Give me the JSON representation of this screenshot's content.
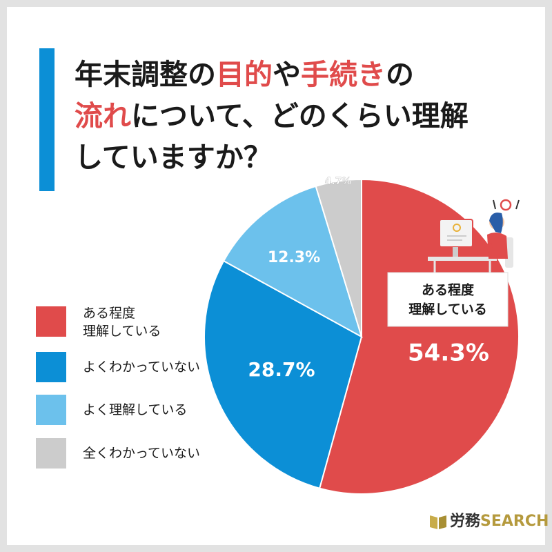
{
  "title": {
    "line1_plain": "年末調整の",
    "line1_hl1": "目的",
    "line1_mid": "や",
    "line1_hl2": "手続き",
    "line1_end": "の",
    "line2_hl": "流れ",
    "line2_rest": "について、どのくらい理解",
    "line3": "していますか？"
  },
  "colors": {
    "accent_bar": "#0c8fd6",
    "highlight_text": "#e04b4b",
    "frame": "#e2e2e2"
  },
  "chart_data": {
    "type": "pie",
    "start": "12 o'clock, clockwise",
    "slices": [
      {
        "label": "ある程度\n理解している",
        "value": 54.3,
        "display": "54.3%",
        "color": "#e04b4b"
      },
      {
        "label": "よくわかっていない",
        "value": 28.7,
        "display": "28.7%",
        "color": "#0c8fd6"
      },
      {
        "label": "よく理解している",
        "value": 12.3,
        "display": "12.3%",
        "color": "#6cc1ec"
      },
      {
        "label": "全くわかっていない",
        "value": 4.7,
        "display": "4.7%",
        "color": "#cccccc"
      }
    ],
    "callout": "ある程度\n理解している",
    "legend_position": "left"
  },
  "legend": [
    {
      "line1": "ある程度",
      "line2": "理解している",
      "color": "#e04b4b"
    },
    {
      "line1": "よくわかっていない",
      "line2": "",
      "color": "#0c8fd6"
    },
    {
      "line1": "よく理解している",
      "line2": "",
      "color": "#6cc1ec"
    },
    {
      "line1": "全くわかっていない",
      "line2": "",
      "color": "#cccccc"
    }
  ],
  "logo": {
    "text_main": "労務",
    "text_accent": "SEARCH"
  }
}
